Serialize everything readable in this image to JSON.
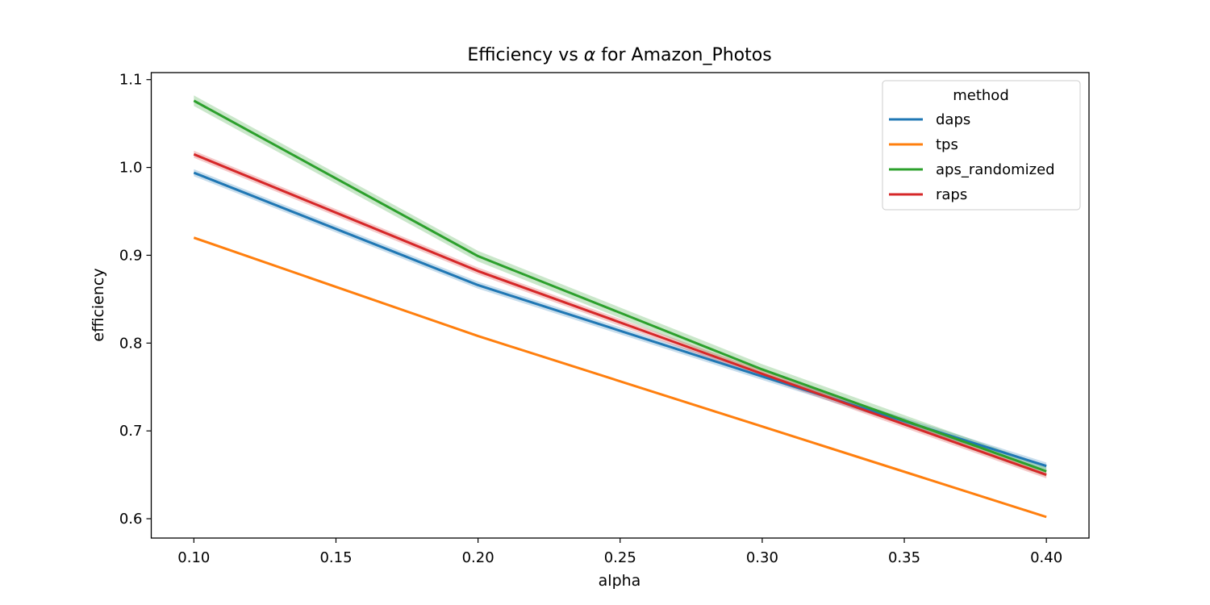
{
  "chart_data": {
    "type": "line",
    "title_prefix": "Efficiency vs ",
    "title_symbol": "α",
    "title_suffix": " for Amazon_Photos",
    "xlabel": "alpha",
    "ylabel": "efficiency",
    "x": [
      0.1,
      0.2,
      0.3,
      0.4
    ],
    "xlim": [
      0.085,
      0.415
    ],
    "ylim": [
      0.578,
      1.108
    ],
    "xticks": [
      0.1,
      0.15,
      0.2,
      0.25,
      0.3,
      0.35,
      0.4
    ],
    "xtick_labels": [
      "0.10",
      "0.15",
      "0.20",
      "0.25",
      "0.30",
      "0.35",
      "0.40"
    ],
    "yticks": [
      0.6,
      0.7,
      0.8,
      0.9,
      1.0,
      1.1
    ],
    "ytick_labels": [
      "0.6",
      "0.7",
      "0.8",
      "0.9",
      "1.0",
      "1.1"
    ],
    "legend_title": "method",
    "legend_position": "top-right",
    "series": [
      {
        "name": "daps",
        "color": "#1f77b4",
        "values": [
          0.994,
          0.866,
          0.762,
          0.66
        ],
        "ci": 0.004
      },
      {
        "name": "tps",
        "color": "#ff7f0e",
        "values": [
          0.92,
          0.808,
          0.705,
          0.602
        ],
        "ci": 0.001
      },
      {
        "name": "aps_randomized",
        "color": "#2ca02c",
        "values": [
          1.076,
          0.899,
          0.77,
          0.654
        ],
        "ci": 0.006
      },
      {
        "name": "raps",
        "color": "#d62728",
        "values": [
          1.015,
          0.882,
          0.765,
          0.65
        ],
        "ci": 0.004
      }
    ]
  }
}
